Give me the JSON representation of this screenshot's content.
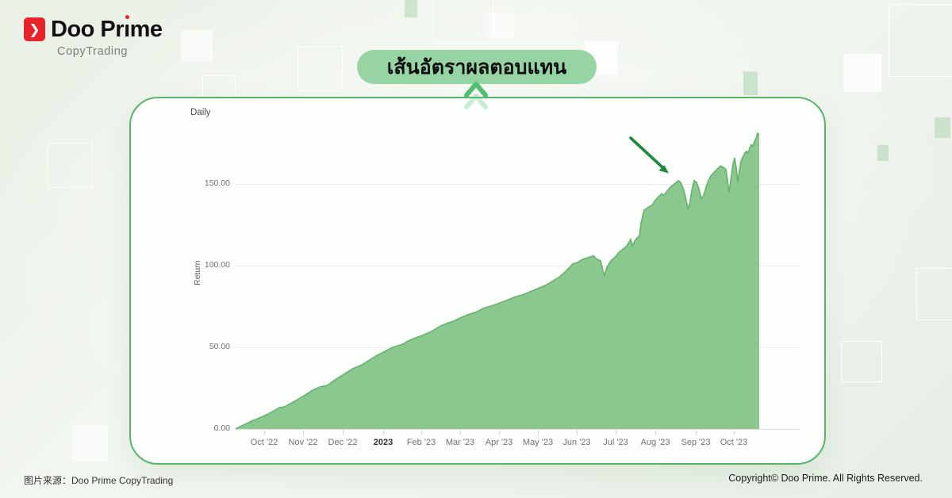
{
  "brand": {
    "name": "Doo Prime",
    "name_part1": "Doo Pr",
    "name_dotless_i": "ı",
    "name_part2": "me",
    "subtitle": "CopyTrading",
    "accent_color": "#e8232a",
    "icon": "chevron-right-icon"
  },
  "banner": {
    "label": "เส้นอัตราผลตอบแทน"
  },
  "footer": {
    "source": "图片来源：Doo Prime CopyTrading",
    "copyright": "Copyright© Doo Prime. All Rights Reserved."
  },
  "chart_data": {
    "type": "area",
    "title": "Daily",
    "ylabel": "Return",
    "legend": "none",
    "grid": "horizontal",
    "ylim": [
      0,
      185
    ],
    "colors": {
      "fill": "#8bc88f",
      "line": "#68b46e",
      "arrow": "#1c8a3a",
      "pill": "#96d4a4",
      "card_border": "#58b468"
    },
    "y_ticks": [
      {
        "label": "0.00",
        "value": 0
      },
      {
        "label": "50.00",
        "value": 50
      },
      {
        "label": "100.00",
        "value": 100
      },
      {
        "label": "150.00",
        "value": 150
      }
    ],
    "x_ticks": [
      {
        "label": "Oct '22",
        "offset": 36,
        "bold": false
      },
      {
        "label": "Nov '22",
        "offset": 85,
        "bold": false
      },
      {
        "label": "Dec '22",
        "offset": 135,
        "bold": false
      },
      {
        "label": "2023",
        "offset": 186,
        "bold": true
      },
      {
        "label": "Feb '23",
        "offset": 234,
        "bold": false
      },
      {
        "label": "Mar '23",
        "offset": 283,
        "bold": false
      },
      {
        "label": "Apr '23",
        "offset": 332,
        "bold": false
      },
      {
        "label": "May '23",
        "offset": 381,
        "bold": false
      },
      {
        "label": "Jun '23",
        "offset": 430,
        "bold": false
      },
      {
        "label": "Jul '23",
        "offset": 479,
        "bold": false
      },
      {
        "label": "Aug '23",
        "offset": 529,
        "bold": false
      },
      {
        "label": "Sep '23",
        "offset": 580,
        "bold": false
      },
      {
        "label": "Oct '23",
        "offset": 628,
        "bold": false
      }
    ],
    "series": [
      {
        "name": "Return",
        "points": [
          [
            0,
            0
          ],
          [
            8,
            2
          ],
          [
            21,
            5
          ],
          [
            36,
            8
          ],
          [
            48,
            11
          ],
          [
            55,
            13
          ],
          [
            61,
            13.5
          ],
          [
            71,
            16
          ],
          [
            85,
            20
          ],
          [
            98,
            24
          ],
          [
            108,
            26
          ],
          [
            115,
            26.5
          ],
          [
            125,
            30
          ],
          [
            135,
            33
          ],
          [
            148,
            37
          ],
          [
            158,
            39
          ],
          [
            165,
            41
          ],
          [
            178,
            45
          ],
          [
            186,
            47
          ],
          [
            198,
            50
          ],
          [
            211,
            52
          ],
          [
            218,
            54
          ],
          [
            228,
            56
          ],
          [
            234,
            57
          ],
          [
            248,
            60
          ],
          [
            258,
            63
          ],
          [
            268,
            65
          ],
          [
            275,
            66
          ],
          [
            283,
            68
          ],
          [
            293,
            70
          ],
          [
            303,
            71.5
          ],
          [
            313,
            74
          ],
          [
            323,
            75.5
          ],
          [
            332,
            77
          ],
          [
            343,
            79
          ],
          [
            353,
            81
          ],
          [
            361,
            82
          ],
          [
            371,
            84
          ],
          [
            381,
            86
          ],
          [
            391,
            88
          ],
          [
            398,
            90
          ],
          [
            408,
            93
          ],
          [
            415,
            96
          ],
          [
            421,
            99
          ],
          [
            425,
            101
          ],
          [
            431,
            102
          ],
          [
            438,
            104
          ],
          [
            445,
            105
          ],
          [
            451,
            106
          ],
          [
            455,
            104
          ],
          [
            460,
            103
          ],
          [
            463,
            97
          ],
          [
            465,
            94
          ],
          [
            468,
            99
          ],
          [
            473,
            103
          ],
          [
            478,
            105
          ],
          [
            483,
            108
          ],
          [
            488,
            110
          ],
          [
            493,
            112
          ],
          [
            498,
            116
          ],
          [
            500,
            112
          ],
          [
            503,
            115
          ],
          [
            506,
            117
          ],
          [
            509,
            118
          ],
          [
            511,
            126
          ],
          [
            515,
            134
          ],
          [
            521,
            136
          ],
          [
            525,
            137
          ],
          [
            529,
            140
          ],
          [
            533,
            142
          ],
          [
            537,
            144
          ],
          [
            540,
            143
          ],
          [
            543,
            145
          ],
          [
            548,
            148
          ],
          [
            553,
            150
          ],
          [
            558,
            152
          ],
          [
            561,
            151
          ],
          [
            565,
            146
          ],
          [
            568,
            140
          ],
          [
            570,
            135
          ],
          [
            572,
            137
          ],
          [
            575,
            146
          ],
          [
            578,
            152
          ],
          [
            581,
            151
          ],
          [
            584,
            147
          ],
          [
            587,
            141
          ],
          [
            590,
            143
          ],
          [
            593,
            148
          ],
          [
            596,
            152
          ],
          [
            599,
            155
          ],
          [
            603,
            157
          ],
          [
            607,
            159
          ],
          [
            611,
            161
          ],
          [
            615,
            160
          ],
          [
            618,
            159
          ],
          [
            620,
            152
          ],
          [
            622,
            145
          ],
          [
            624,
            152
          ],
          [
            627,
            162
          ],
          [
            629,
            166
          ],
          [
            631,
            160
          ],
          [
            633,
            151
          ],
          [
            635,
            158
          ],
          [
            637,
            164
          ],
          [
            639,
            166
          ],
          [
            642,
            169
          ],
          [
            644,
            170
          ],
          [
            646,
            169
          ],
          [
            648,
            172
          ],
          [
            650,
            174
          ],
          [
            652,
            173
          ],
          [
            654,
            176
          ],
          [
            656,
            178
          ],
          [
            658,
            181
          ],
          [
            660,
            180
          ]
        ]
      }
    ],
    "annotation": {
      "type": "arrow",
      "note": "points to the ~150 return drawdown region near Aug–Sep '23"
    }
  }
}
